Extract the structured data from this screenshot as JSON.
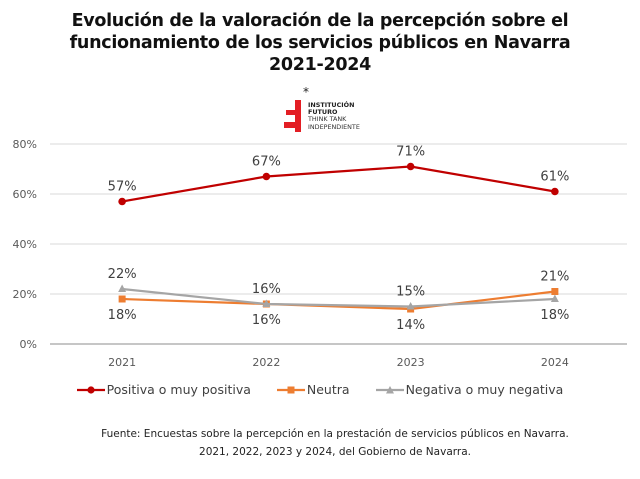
{
  "chart_data": {
    "type": "line",
    "title": [
      "Evolución de la valoración de la percepción sobre el",
      "funcionamiento de los servicios públicos en Navarra",
      "2021-2024"
    ],
    "xlabel": "",
    "ylabel": "",
    "categories": [
      "2021",
      "2022",
      "2023",
      "2024"
    ],
    "ylim": [
      0,
      80
    ],
    "yticks": [
      0,
      20,
      40,
      60,
      80
    ],
    "ytick_labels": [
      "0%",
      "20%",
      "40%",
      "60%",
      "80%"
    ],
    "grid": true,
    "legend_position": "bottom",
    "series": [
      {
        "name": "Positiva o muy positiva",
        "values": [
          57,
          67,
          71,
          61
        ],
        "labels": [
          "57%",
          "67%",
          "71%",
          "61%"
        ],
        "label_position": [
          "above",
          "above",
          "above",
          "above"
        ],
        "color": "#C00000",
        "marker": "circle"
      },
      {
        "name": "Neutra",
        "values": [
          18,
          16,
          14,
          21
        ],
        "labels": [
          "18%",
          "16%",
          "14%",
          "21%"
        ],
        "label_position": [
          "below",
          "below",
          "below",
          "above"
        ],
        "color": "#ED7D31",
        "marker": "square"
      },
      {
        "name": "Negativa o muy negativa",
        "values": [
          22,
          16,
          15,
          18
        ],
        "labels": [
          "22%",
          "16%",
          "15%",
          "18%"
        ],
        "label_position": [
          "above",
          "above",
          "above",
          "below"
        ],
        "color": "#A5A5A5",
        "marker": "triangle"
      }
    ]
  },
  "logo": {
    "star": "*",
    "line1": "INSTITUCIÓN",
    "line2": "FUTURO",
    "line3": "THINK TANK",
    "line4": "INDEPENDIENTE",
    "color": "#E31E24"
  },
  "source": {
    "line1": "Fuente: Encuestas sobre la percepción en la prestación de servicios públicos en Navarra.",
    "line2": "2021, 2022, 2023 y 2024, del Gobierno de Navarra."
  }
}
